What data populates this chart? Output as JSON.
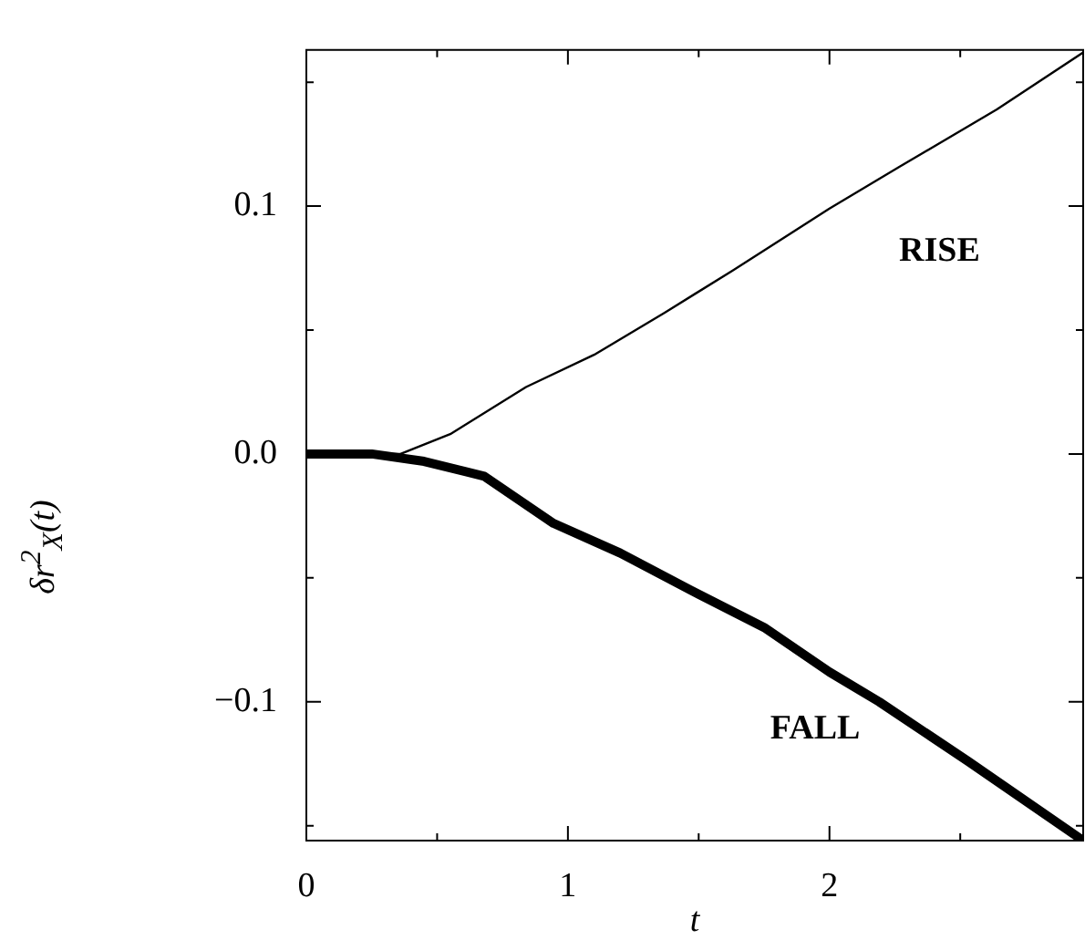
{
  "chart_data": {
    "type": "line",
    "xlabel": "t",
    "ylabel": "δr$^{2}$$_{X}$(t)",
    "xlim": [
      0,
      2.97
    ],
    "ylim": [
      -0.156,
      0.163
    ],
    "xticks": [
      0,
      {
        "value": 0.5,
        "label": null
      },
      1,
      {
        "value": 1.5,
        "label": null
      },
      2,
      {
        "value": 2.5,
        "label": null
      }
    ],
    "yticks": [
      {
        "value": -0.15,
        "label": null
      },
      {
        "value": -0.1,
        "label": "−0.1"
      },
      {
        "value": -0.05,
        "label": null
      },
      {
        "value": 0,
        "label": "0.0"
      },
      {
        "value": 0.05,
        "label": null
      },
      {
        "value": 0.1,
        "label": "0.1"
      },
      {
        "value": 0.15,
        "label": null
      }
    ],
    "series": [
      {
        "color": "#000000",
        "x": [
          0,
          0.36,
          0.55,
          0.84,
          1.1,
          1.37,
          1.63,
          2.0,
          2.27,
          2.64,
          2.97
        ],
        "values": [
          0,
          0,
          0.008,
          0.027,
          0.04,
          0.057,
          0.074,
          0.099,
          0.116,
          0.139,
          0.162
        ]
      },
      {
        "color": "#000000",
        "x": [
          0,
          0.25,
          0.45,
          0.68,
          0.945,
          1.2,
          1.47,
          1.75,
          2.0,
          2.19,
          2.53,
          2.97
        ],
        "values": [
          0,
          0,
          -0.003,
          -0.009,
          -0.028,
          -0.04,
          -0.055,
          -0.07,
          -0.088,
          -0.1,
          -0.124,
          -0.156
        ]
      }
    ],
    "annotations": [
      "RISE",
      "FALL"
    ]
  }
}
